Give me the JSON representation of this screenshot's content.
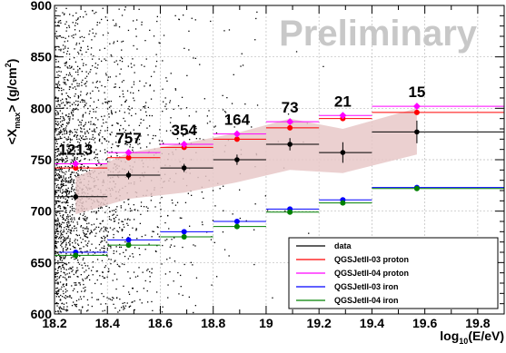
{
  "chart_data": {
    "type": "scatter",
    "title": "",
    "watermark": "Preliminary",
    "xlabel_base": "log",
    "xlabel_sub": "10",
    "xlabel_rest": "(E/eV)",
    "ylabel_pre": "<X",
    "ylabel_sub": "max",
    "ylabel_mid": "> (g/cm",
    "ylabel_sup": "2",
    "ylabel_post": ")",
    "xlim": [
      18.2,
      19.9
    ],
    "ylim": [
      600,
      900
    ],
    "xticks": [
      18.2,
      18.4,
      18.6,
      18.8,
      19,
      19.2,
      19.4,
      19.6,
      19.8
    ],
    "xtick_labels": [
      "18.2",
      "18.4",
      "18.6",
      "18.8",
      "19",
      "19.2",
      "19.4",
      "19.6",
      "19.8"
    ],
    "yticks": [
      600,
      650,
      700,
      750,
      800,
      850,
      900
    ],
    "ytick_labels": [
      "600",
      "650",
      "700",
      "750",
      "800",
      "850",
      "900"
    ],
    "grid": true,
    "bins": [
      {
        "lo": 18.2,
        "hi": 18.4,
        "x": 18.28,
        "count": "1213"
      },
      {
        "lo": 18.4,
        "hi": 18.6,
        "x": 18.48,
        "count": "757"
      },
      {
        "lo": 18.6,
        "hi": 18.8,
        "x": 18.69,
        "count": "354"
      },
      {
        "lo": 18.8,
        "hi": 19.0,
        "x": 18.89,
        "count": "164"
      },
      {
        "lo": 19.0,
        "hi": 19.2,
        "x": 19.09,
        "count": "73"
      },
      {
        "lo": 19.2,
        "hi": 19.4,
        "x": 19.29,
        "count": "21"
      },
      {
        "lo": 19.4,
        "hi": 19.9,
        "x": 19.57,
        "count": "15"
      }
    ],
    "data_mean": [
      714,
      735,
      742,
      750,
      765,
      757,
      777
    ],
    "data_err": [
      3,
      4,
      4,
      5,
      6,
      10,
      11
    ],
    "syst_low": [
      697,
      712,
      718,
      728,
      740,
      737,
      755
    ],
    "syst_high": [
      733,
      757,
      766,
      776,
      790,
      780,
      800
    ],
    "series": [
      {
        "name": "data",
        "color": "#000000",
        "values": [
          714,
          735,
          742,
          750,
          765,
          757,
          777
        ]
      },
      {
        "name": "QGSJetII-03 proton",
        "color": "#ff0000",
        "values": [
          742,
          752,
          762,
          770,
          781,
          790,
          796
        ]
      },
      {
        "name": "QGSJetII-04 proton",
        "color": "#ff00ff",
        "values": [
          746,
          757,
          765,
          775,
          787,
          793,
          802
        ]
      },
      {
        "name": "QGSJetII-03 iron",
        "color": "#0000ff",
        "values": [
          660,
          672,
          680,
          690,
          702,
          711,
          723
        ]
      },
      {
        "name": "QGSJetII-04 iron",
        "color": "#008000",
        "values": [
          657,
          667,
          675,
          685,
          699,
          708,
          722
        ]
      }
    ],
    "legend_position": "bottom-right",
    "band_color": "#e8c8c8",
    "dot_color": "#000000"
  }
}
